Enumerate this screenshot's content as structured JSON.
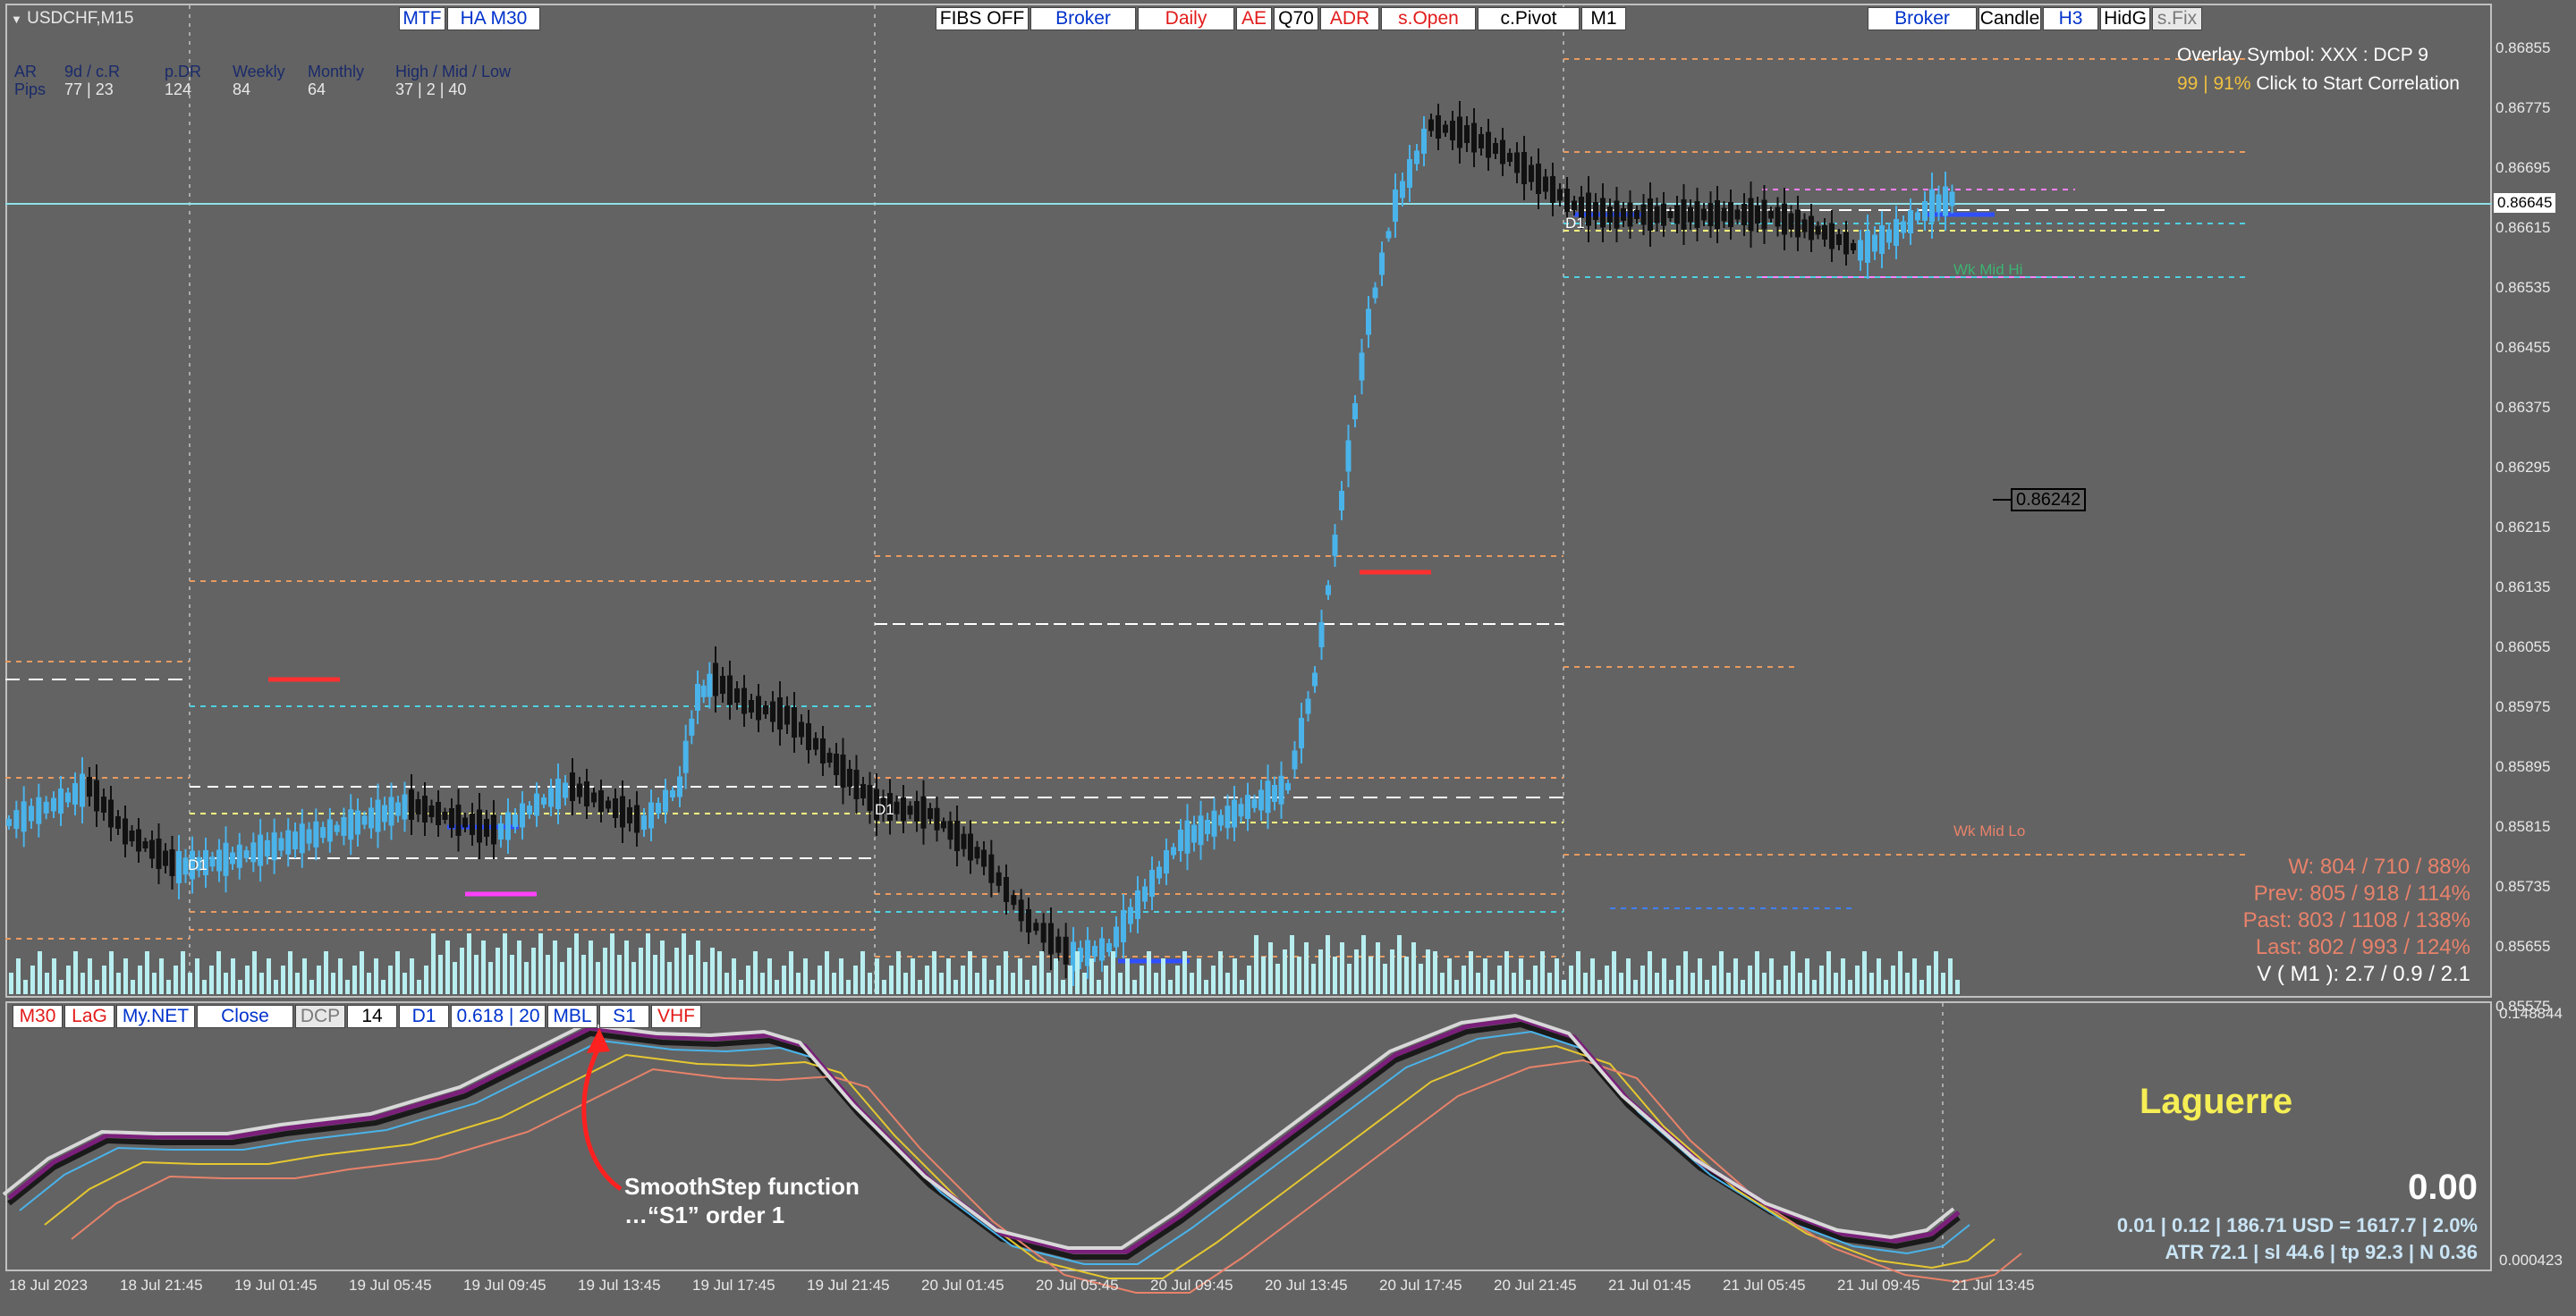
{
  "symbol": {
    "title": "USDCHF,M15"
  },
  "colors": {
    "background": "#636363",
    "bull": "#4ab3ea",
    "bear": "#000000",
    "grid": "#c0c0c0"
  },
  "stats_header": {
    "labels": [
      "AR",
      "9d / c.R",
      "p.DR",
      "Weekly",
      "Monthly",
      "High / Mid / Low"
    ],
    "row_label": "Pips",
    "values": [
      "77 | 23",
      "124",
      "84",
      "64",
      "37  |  2  |  40"
    ]
  },
  "toolbar_left": [
    "MTF",
    "HA M30"
  ],
  "toolbar_center": [
    "FIBS OFF",
    "Broker",
    "Daily",
    "AE",
    "Q70",
    "ADR",
    "s.Open",
    "c.Pivot",
    "M1"
  ],
  "toolbar_right": [
    "Broker",
    "Candle",
    "H3",
    "HidG",
    "s.Fix"
  ],
  "overlay": {
    "line1": "Overlay Symbol: XXX : DCP 9",
    "line2_pct": "99 | 91%",
    "line2_action": "Click to Start Correlation"
  },
  "price_marker": "0.86242",
  "current_price": "0.86645",
  "price_axis": [
    "0.86855",
    "0.86775",
    "0.86695",
    "0.86615",
    "0.86535",
    "0.86455",
    "0.86375",
    "0.86295",
    "0.86215",
    "0.86135",
    "0.86055",
    "0.85975",
    "0.85895",
    "0.85815",
    "0.85735",
    "0.85655",
    "0.85575"
  ],
  "chart_labels": {
    "d1": "D1",
    "wk_mid_hi": "Wk Mid Hi",
    "wk_mid_lo": "Wk Mid Lo"
  },
  "range_stats": {
    "w": "W: 804 / 710 / 88%",
    "prev": "Prev: 805 / 918 / 114%",
    "past": "Past: 803 / 1108 / 138%",
    "last": "Last: 802 / 993 / 124%",
    "v": "V ( M1 ): 2.7 / 0.9 / 2.1"
  },
  "indicator_toolbar": [
    "M30",
    "LaG",
    "My.NET",
    "Close",
    "DCP",
    "14",
    "D1",
    "0.618 | 20",
    "MBL",
    "S1",
    "VHF"
  ],
  "indicator": {
    "name": "Laguerre",
    "value": "0.00",
    "line1": "0.01  |  0.12  |  186.71 USD = 1617.7  |  2.0%",
    "line2": "ATR 72.1  |  sl 44.6  |  tp 92.3  |  N 0.36",
    "axis_top": "0.148844",
    "axis_bottom": "0.000423"
  },
  "annotation": {
    "line1": "SmoothStep function",
    "line2": "…“S1” order 1"
  },
  "time_axis": [
    "18 Jul 2023",
    "18 Jul 21:45",
    "19 Jul 01:45",
    "19 Jul 05:45",
    "19 Jul 09:45",
    "19 Jul 13:45",
    "19 Jul 17:45",
    "19 Jul 21:45",
    "20 Jul 01:45",
    "20 Jul 05:45",
    "20 Jul 09:45",
    "20 Jul 13:45",
    "20 Jul 17:45",
    "20 Jul 21:45",
    "21 Jul 01:45",
    "21 Jul 05:45",
    "21 Jul 09:45",
    "21 Jul 13:45"
  ]
}
